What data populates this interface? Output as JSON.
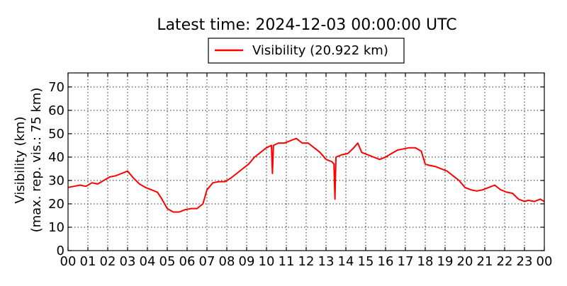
{
  "chart_data": {
    "type": "line",
    "title": "Latest time: 2024-12-03 00:00:00 UTC",
    "ylabel": "Visibility (km)",
    "ylabel2": "(max. rep. vis.: 75 km)",
    "xlabel": "",
    "xlim": [
      0,
      24
    ],
    "ylim": [
      0,
      76
    ],
    "grid": true,
    "legend_position": "top-center",
    "x_ticks": [
      "00",
      "01",
      "02",
      "03",
      "04",
      "05",
      "06",
      "07",
      "08",
      "09",
      "10",
      "11",
      "12",
      "13",
      "14",
      "15",
      "16",
      "17",
      "18",
      "19",
      "20",
      "21",
      "22",
      "23",
      "00"
    ],
    "y_ticks": [
      0,
      10,
      20,
      30,
      40,
      50,
      60,
      70
    ],
    "series": [
      {
        "name": "Visibility (20.922 km)",
        "color": "#ff0000",
        "x": [
          0.0,
          0.3,
          0.6,
          0.9,
          1.2,
          1.5,
          1.8,
          2.1,
          2.4,
          2.7,
          3.0,
          3.3,
          3.6,
          3.9,
          4.2,
          4.5,
          4.7,
          5.0,
          5.3,
          5.6,
          5.9,
          6.2,
          6.5,
          6.8,
          7.0,
          7.3,
          7.6,
          7.9,
          8.2,
          8.5,
          8.8,
          9.1,
          9.4,
          9.7,
          10.0,
          10.25,
          10.3,
          10.35,
          10.6,
          10.9,
          11.2,
          11.5,
          11.8,
          12.1,
          12.4,
          12.7,
          13.0,
          13.3,
          13.4,
          13.45,
          13.5,
          13.8,
          14.1,
          14.4,
          14.6,
          14.8,
          15.1,
          15.4,
          15.7,
          16.0,
          16.3,
          16.6,
          16.9,
          17.2,
          17.5,
          17.8,
          18.0,
          18.2,
          18.5,
          18.8,
          19.1,
          19.4,
          19.7,
          20.0,
          20.3,
          20.6,
          20.9,
          21.2,
          21.5,
          21.8,
          22.1,
          22.4,
          22.7,
          23.0,
          23.2,
          23.5,
          23.8,
          24.0
        ],
        "y": [
          27,
          27.5,
          28,
          27.5,
          29,
          28.5,
          30,
          31.5,
          32,
          33,
          34,
          31,
          28.5,
          27,
          26,
          25,
          22.5,
          18,
          16.5,
          16.5,
          17.5,
          18,
          18,
          20,
          26,
          29,
          29.5,
          29.5,
          31,
          33,
          35,
          37,
          40,
          42,
          44,
          45,
          33,
          45,
          46,
          46,
          47,
          48,
          46,
          46,
          44,
          42,
          39,
          38,
          37,
          22,
          40,
          41,
          41.5,
          44,
          46,
          42,
          41,
          40,
          39,
          40,
          41.5,
          43,
          43.5,
          44,
          44,
          42.5,
          37,
          36.5,
          36,
          35,
          34,
          32,
          30,
          27,
          26,
          25.5,
          26,
          27,
          28,
          26,
          25,
          24.5,
          22,
          21,
          21.5,
          21,
          22,
          21
        ]
      }
    ]
  }
}
